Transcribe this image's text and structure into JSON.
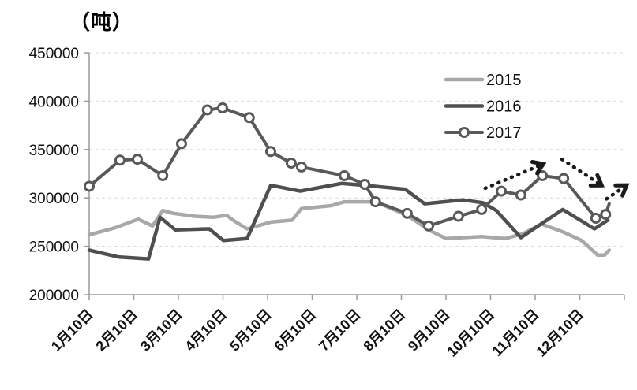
{
  "chart": {
    "unit_label": "（吨）",
    "type": "line",
    "grid": true,
    "y_axis": {
      "min": 200000,
      "max": 450000,
      "step": 50000,
      "tick_labels": [
        "200000",
        "250000",
        "300000",
        "350000",
        "400000",
        "450000"
      ]
    },
    "x_axis": {
      "tick_labels": [
        "1月10日",
        "2月10日",
        "3月10日",
        "4月10日",
        "5月10日",
        "6月10日",
        "7月10日",
        "8月10日",
        "9月10日",
        "10月10日",
        "11月10日",
        "12月10日"
      ]
    },
    "legend": {
      "position": "upper-right",
      "entries": [
        "2015",
        "2016",
        "2017"
      ]
    },
    "series": [
      {
        "name": "2015",
        "color": "#a8a8a8",
        "line_width": 4.5,
        "marker": "none",
        "points": [
          [
            0,
            262000
          ],
          [
            0.57,
            269000
          ],
          [
            1.1,
            278000
          ],
          [
            1.42,
            271000
          ],
          [
            1.65,
            287000
          ],
          [
            1.89,
            284000
          ],
          [
            2.37,
            281000
          ],
          [
            2.78,
            280000
          ],
          [
            3.08,
            282000
          ],
          [
            3.26,
            276000
          ],
          [
            3.54,
            268000
          ],
          [
            4.07,
            275000
          ],
          [
            4.55,
            277000
          ],
          [
            4.76,
            289000
          ],
          [
            5.43,
            292000
          ],
          [
            5.72,
            296000
          ],
          [
            6.42,
            296000
          ],
          [
            7.13,
            282000
          ],
          [
            7.61,
            267000
          ],
          [
            8.0,
            258000
          ],
          [
            8.8,
            260000
          ],
          [
            9.33,
            258000
          ],
          [
            9.73,
            263000
          ],
          [
            10.14,
            273000
          ],
          [
            10.62,
            265000
          ],
          [
            11.04,
            256000
          ],
          [
            11.4,
            241000
          ],
          [
            11.56,
            241000
          ],
          [
            11.66,
            246000
          ]
        ]
      },
      {
        "name": "2016",
        "color": "#4f4f4f",
        "line_width": 4.5,
        "marker": "none",
        "points": [
          [
            0,
            246000
          ],
          [
            0.65,
            239000
          ],
          [
            1.33,
            237000
          ],
          [
            1.59,
            280000
          ],
          [
            1.93,
            267000
          ],
          [
            2.69,
            268000
          ],
          [
            3.01,
            256000
          ],
          [
            3.54,
            258000
          ],
          [
            4.07,
            313000
          ],
          [
            4.73,
            307000
          ],
          [
            5.66,
            315000
          ],
          [
            6.18,
            313000
          ],
          [
            7.08,
            309000
          ],
          [
            7.52,
            294000
          ],
          [
            8.37,
            298000
          ],
          [
            8.83,
            295000
          ],
          [
            9.13,
            287000
          ],
          [
            9.68,
            259000
          ],
          [
            10.62,
            288000
          ],
          [
            11.33,
            268000
          ],
          [
            11.63,
            277000
          ]
        ]
      },
      {
        "name": "2017",
        "color": "#595959",
        "line_width": 4,
        "marker": "circle",
        "marker_skip_last": true,
        "points": [
          [
            0,
            312000
          ],
          [
            0.69,
            339000
          ],
          [
            1.08,
            340000
          ],
          [
            1.65,
            323000
          ],
          [
            2.07,
            356000
          ],
          [
            2.65,
            391000
          ],
          [
            2.99,
            393000
          ],
          [
            3.59,
            383000
          ],
          [
            4.07,
            348000
          ],
          [
            4.53,
            336000
          ],
          [
            4.76,
            332000
          ],
          [
            5.72,
            323000
          ],
          [
            6.18,
            314000
          ],
          [
            6.42,
            296000
          ],
          [
            7.13,
            284000
          ],
          [
            7.61,
            271000
          ],
          [
            8.28,
            281000
          ],
          [
            8.8,
            288000
          ],
          [
            9.24,
            307000
          ],
          [
            9.68,
            303000
          ],
          [
            10.16,
            323000
          ],
          [
            10.64,
            320000
          ],
          [
            11.36,
            279000
          ],
          [
            11.58,
            283000
          ],
          [
            11.66,
            294000
          ]
        ]
      }
    ],
    "annotations": {
      "color": "#1a1a1a",
      "arrows": [
        {
          "from": [
            8.88,
            310000
          ],
          "to": [
            10.18,
            335000
          ]
        },
        {
          "from": [
            10.6,
            340000
          ],
          "to": [
            11.49,
            313000
          ]
        },
        {
          "from": [
            11.6,
            299000
          ],
          "to": [
            12.05,
            313000
          ]
        }
      ]
    },
    "style": {
      "grid_color": "#d9d9d9",
      "axis_color": "#9a9a9a",
      "text_color": "#111111",
      "marker_fill": "#ffffff"
    }
  }
}
